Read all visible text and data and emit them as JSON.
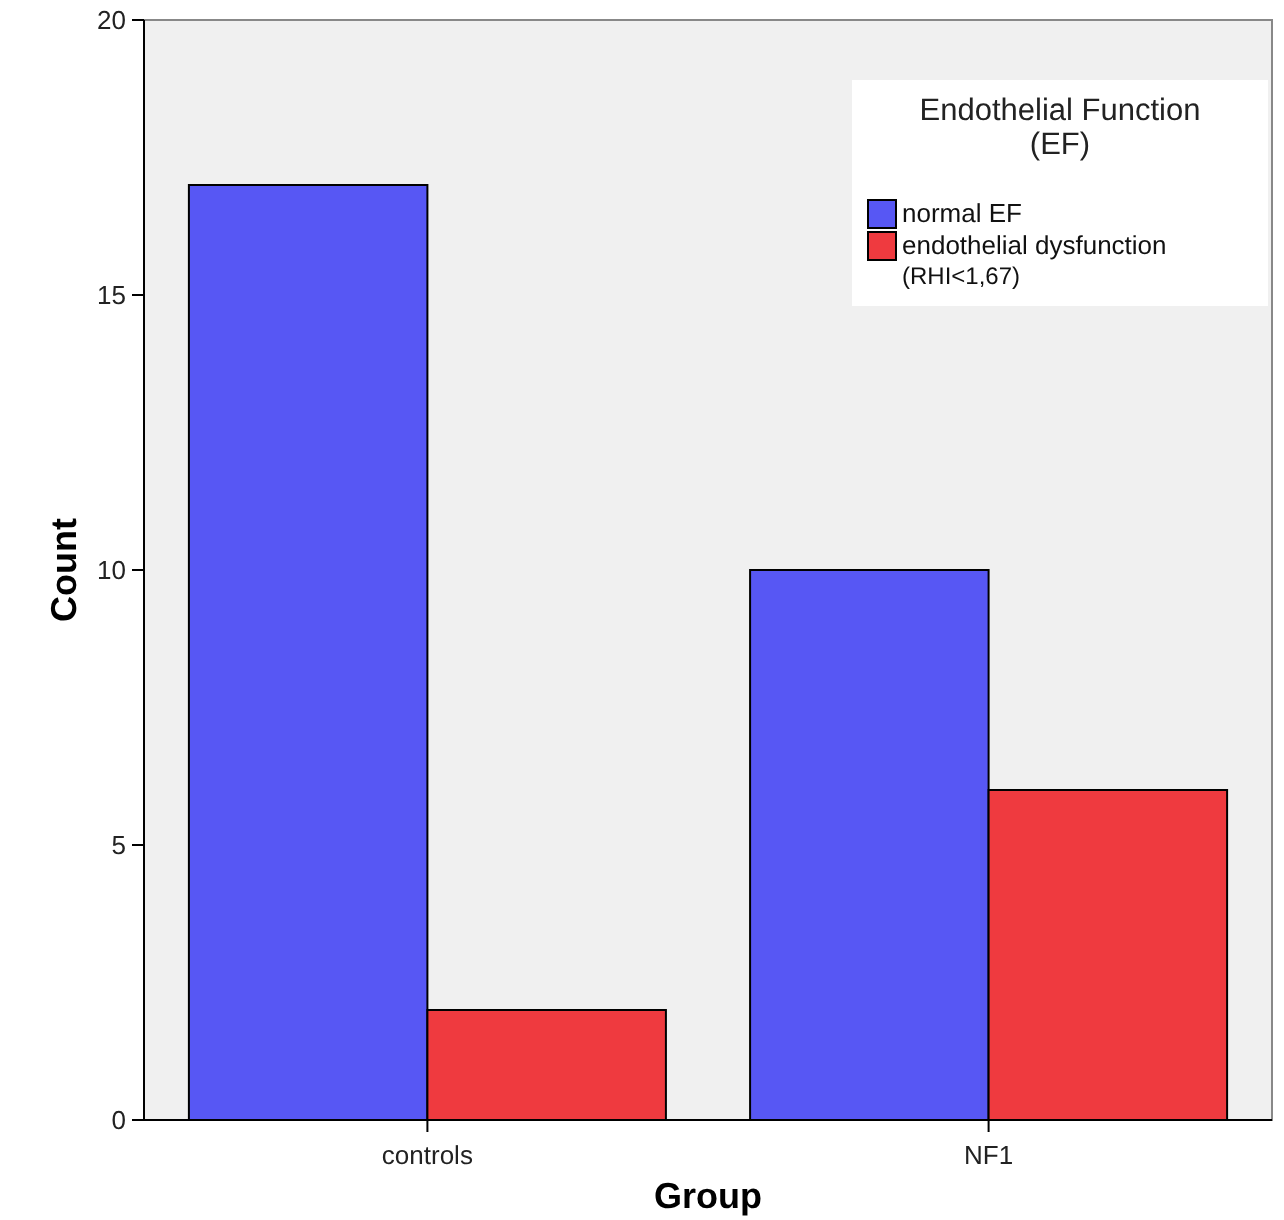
{
  "chart_data": {
    "type": "bar",
    "xlabel": "Group",
    "ylabel": "Count",
    "legend_title": "Endothelial Function (EF)",
    "categories": [
      "controls",
      "NF1"
    ],
    "series": [
      {
        "name": "normal EF",
        "color": "#5757f4",
        "values": [
          17,
          10
        ]
      },
      {
        "name": "endothelial dysfunction (RHI<1,67)",
        "color": "#ef3a3f",
        "values": [
          2,
          6
        ]
      }
    ],
    "ylim": [
      0,
      20
    ],
    "yticks": [
      0,
      5,
      10,
      15,
      20
    ],
    "grid": false,
    "legend": "top right"
  }
}
